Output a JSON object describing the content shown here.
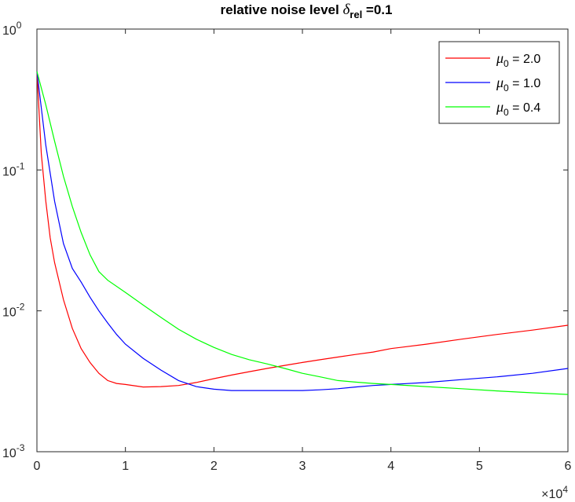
{
  "chart_data": {
    "type": "line",
    "title": {
      "prefix": "relative noise level ",
      "symbol": "δ",
      "subscript": "rel",
      "suffix": " =0.1"
    },
    "xlabel": "",
    "ylabel": "",
    "x_multiplier": "×10",
    "x_multiplier_exp": "4",
    "xlim": [
      0,
      60000
    ],
    "ylim": [
      0.001,
      1
    ],
    "yscale": "log",
    "x_ticks": [
      0,
      10000,
      20000,
      30000,
      40000,
      50000,
      60000
    ],
    "x_tick_labels": [
      "0",
      "1",
      "2",
      "3",
      "4",
      "5",
      "6"
    ],
    "y_ticks": [
      0.001,
      0.01,
      0.1,
      1
    ],
    "y_tick_labels": [
      {
        "base": "10",
        "exp": "-3"
      },
      {
        "base": "10",
        "exp": "-2"
      },
      {
        "base": "10",
        "exp": "-1"
      },
      {
        "base": "10",
        "exp": "0"
      }
    ],
    "grid": false,
    "legend_position": "top-right",
    "series": [
      {
        "name": "μ0 = 2.0",
        "legend": {
          "symbol": "μ",
          "sub": "0",
          "text": " = 2.0"
        },
        "color": "#ff0000",
        "x": [
          0,
          500,
          1000,
          1500,
          2000,
          3000,
          4000,
          5000,
          6000,
          7000,
          8000,
          9000,
          10000,
          12000,
          14000,
          16000,
          18000,
          20000,
          22000,
          24000,
          26000,
          28000,
          30000,
          32000,
          34000,
          36000,
          38000,
          40000,
          44000,
          48000,
          52000,
          56000,
          60000
        ],
        "y": [
          0.5,
          0.13,
          0.06,
          0.033,
          0.022,
          0.012,
          0.0075,
          0.0054,
          0.0043,
          0.0036,
          0.0032,
          0.00305,
          0.003,
          0.00288,
          0.0029,
          0.00295,
          0.0031,
          0.0033,
          0.0035,
          0.0037,
          0.0039,
          0.0041,
          0.0043,
          0.0045,
          0.0047,
          0.0049,
          0.0051,
          0.0054,
          0.0058,
          0.0063,
          0.0068,
          0.0073,
          0.0079
        ]
      },
      {
        "name": "μ0 = 1.0",
        "legend": {
          "symbol": "μ",
          "sub": "0",
          "text": " = 1.0"
        },
        "color": "#0000ff",
        "x": [
          0,
          1000,
          2000,
          3000,
          4000,
          5000,
          6000,
          7000,
          8000,
          9000,
          10000,
          12000,
          14000,
          16000,
          18000,
          20000,
          22000,
          24000,
          26000,
          28000,
          30000,
          32000,
          34000,
          36000,
          38000,
          40000,
          44000,
          48000,
          52000,
          56000,
          60000
        ],
        "y": [
          0.5,
          0.15,
          0.06,
          0.03,
          0.02,
          0.016,
          0.0125,
          0.01,
          0.0082,
          0.0068,
          0.0058,
          0.0046,
          0.0038,
          0.0032,
          0.0029,
          0.00278,
          0.00272,
          0.00272,
          0.00272,
          0.00272,
          0.00272,
          0.00275,
          0.0028,
          0.00288,
          0.00295,
          0.003,
          0.0031,
          0.00325,
          0.0034,
          0.0036,
          0.0039
        ]
      },
      {
        "name": "μ0 = 0.4",
        "legend": {
          "symbol": "μ",
          "sub": "0",
          "text": " = 0.4"
        },
        "color": "#00ff00",
        "x": [
          0,
          1000,
          2000,
          3000,
          4000,
          5000,
          6000,
          7000,
          8000,
          10000,
          12000,
          14000,
          16000,
          18000,
          20000,
          22000,
          24000,
          26000,
          28000,
          30000,
          32000,
          34000,
          36000,
          38000,
          40000,
          44000,
          48000,
          52000,
          56000,
          60000
        ],
        "y": [
          0.5,
          0.29,
          0.16,
          0.09,
          0.055,
          0.036,
          0.025,
          0.019,
          0.0165,
          0.0135,
          0.011,
          0.009,
          0.0074,
          0.0063,
          0.0055,
          0.0049,
          0.0045,
          0.0042,
          0.0039,
          0.0036,
          0.0034,
          0.0032,
          0.00312,
          0.00305,
          0.003,
          0.0029,
          0.0028,
          0.0027,
          0.00262,
          0.00255
        ]
      }
    ]
  }
}
